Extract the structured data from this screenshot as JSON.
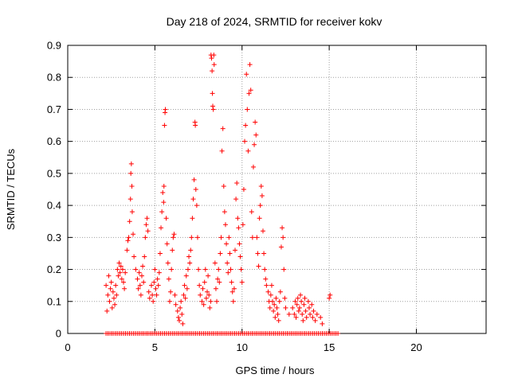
{
  "chart_data": {
    "type": "scatter",
    "title": "Day 218 of 2024, SRMTID for receiver kokv",
    "xlabel": "GPS time / hours",
    "ylabel": "SRMTID / TECUs",
    "xlim": [
      0,
      24
    ],
    "ylim": [
      0,
      0.9
    ],
    "x_ticks": [
      0,
      5,
      10,
      15,
      20
    ],
    "y_ticks": [
      0,
      0.1,
      0.2,
      0.3,
      0.4,
      0.5,
      0.6,
      0.7,
      0.8,
      0.9
    ],
    "x_tick_labels": [
      "0",
      "5",
      "10",
      "15",
      "20"
    ],
    "y_tick_labels": [
      "0",
      "0.1",
      "0.2",
      "0.3",
      "0.4",
      "0.5",
      "0.6",
      "0.7",
      "0.8",
      "0.9"
    ],
    "grid": true,
    "marker": "+",
    "series": [
      {
        "name": "SRMTID",
        "color": "#ff0000",
        "points": [
          [
            2.2,
            0.15
          ],
          [
            2.25,
            0.07
          ],
          [
            2.3,
            0.12
          ],
          [
            2.35,
            0.18
          ],
          [
            2.4,
            0.1
          ],
          [
            2.45,
            0.14
          ],
          [
            2.5,
            0.16
          ],
          [
            2.55,
            0.08
          ],
          [
            2.6,
            0.13
          ],
          [
            2.65,
            0.11
          ],
          [
            2.7,
            0.09
          ],
          [
            2.75,
            0.15
          ],
          [
            2.8,
            0.12
          ],
          [
            2.85,
            0.2
          ],
          [
            2.9,
            0.18
          ],
          [
            2.95,
            0.22
          ],
          [
            3.0,
            0.19
          ],
          [
            3.05,
            0.21
          ],
          [
            3.1,
            0.17
          ],
          [
            3.15,
            0.2
          ],
          [
            3.2,
            0.16
          ],
          [
            3.25,
            0.14
          ],
          [
            3.3,
            0.19
          ],
          [
            3.4,
            0.26
          ],
          [
            3.45,
            0.29
          ],
          [
            3.5,
            0.3
          ],
          [
            3.55,
            0.35
          ],
          [
            3.6,
            0.42
          ],
          [
            3.62,
            0.5
          ],
          [
            3.65,
            0.53
          ],
          [
            3.68,
            0.46
          ],
          [
            3.7,
            0.38
          ],
          [
            3.75,
            0.31
          ],
          [
            3.8,
            0.24
          ],
          [
            3.9,
            0.2
          ],
          [
            4.0,
            0.17
          ],
          [
            4.05,
            0.14
          ],
          [
            4.1,
            0.19
          ],
          [
            4.15,
            0.15
          ],
          [
            4.2,
            0.12
          ],
          [
            4.25,
            0.18
          ],
          [
            4.3,
            0.21
          ],
          [
            4.35,
            0.16
          ],
          [
            4.4,
            0.24
          ],
          [
            4.45,
            0.3
          ],
          [
            4.5,
            0.34
          ],
          [
            4.55,
            0.36
          ],
          [
            4.6,
            0.32
          ],
          [
            4.65,
            0.13
          ],
          [
            4.7,
            0.11
          ],
          [
            4.8,
            0.15
          ],
          [
            4.85,
            0.12
          ],
          [
            4.9,
            0.1
          ],
          [
            4.95,
            0.16
          ],
          [
            5.0,
            0.2
          ],
          [
            5.05,
            0.14
          ],
          [
            5.1,
            0.12
          ],
          [
            5.15,
            0.17
          ],
          [
            5.2,
            0.15
          ],
          [
            5.25,
            0.19
          ],
          [
            5.3,
            0.25
          ],
          [
            5.35,
            0.33
          ],
          [
            5.4,
            0.38
          ],
          [
            5.45,
            0.44
          ],
          [
            5.5,
            0.41
          ],
          [
            5.52,
            0.46
          ],
          [
            5.55,
            0.65
          ],
          [
            5.58,
            0.69
          ],
          [
            5.6,
            0.7
          ],
          [
            5.65,
            0.36
          ],
          [
            5.7,
            0.28
          ],
          [
            5.75,
            0.22
          ],
          [
            5.8,
            0.17
          ],
          [
            5.85,
            0.1
          ],
          [
            5.9,
            0.13
          ],
          [
            5.95,
            0.2
          ],
          [
            6.0,
            0.26
          ],
          [
            6.05,
            0.3
          ],
          [
            6.1,
            0.31
          ],
          [
            6.15,
            0.12
          ],
          [
            6.2,
            0.09
          ],
          [
            6.3,
            0.07
          ],
          [
            6.35,
            0.05
          ],
          [
            6.4,
            0.04
          ],
          [
            6.45,
            0.08
          ],
          [
            6.5,
            0.1
          ],
          [
            6.55,
            0.06
          ],
          [
            6.6,
            0.03
          ],
          [
            6.65,
            0.12
          ],
          [
            6.7,
            0.15
          ],
          [
            6.75,
            0.11
          ],
          [
            6.8,
            0.18
          ],
          [
            6.85,
            0.14
          ],
          [
            6.9,
            0.2
          ],
          [
            6.95,
            0.24
          ],
          [
            7.0,
            0.22
          ],
          [
            7.05,
            0.26
          ],
          [
            7.1,
            0.3
          ],
          [
            7.15,
            0.36
          ],
          [
            7.2,
            0.42
          ],
          [
            7.25,
            0.48
          ],
          [
            7.3,
            0.66
          ],
          [
            7.32,
            0.65
          ],
          [
            7.35,
            0.45
          ],
          [
            7.4,
            0.4
          ],
          [
            7.45,
            0.3
          ],
          [
            7.5,
            0.2
          ],
          [
            7.55,
            0.15
          ],
          [
            7.6,
            0.12
          ],
          [
            7.7,
            0.1
          ],
          [
            7.75,
            0.14
          ],
          [
            7.8,
            0.09
          ],
          [
            7.85,
            0.16
          ],
          [
            7.9,
            0.2
          ],
          [
            7.95,
            0.11
          ],
          [
            8.0,
            0.13
          ],
          [
            8.05,
            0.18
          ],
          [
            8.1,
            0.12
          ],
          [
            8.15,
            0.08
          ],
          [
            8.2,
            0.1
          ],
          [
            8.22,
            0.87
          ],
          [
            8.25,
            0.86
          ],
          [
            8.28,
            0.82
          ],
          [
            8.3,
            0.75
          ],
          [
            8.32,
            0.71
          ],
          [
            8.35,
            0.7
          ],
          [
            8.38,
            0.87
          ],
          [
            8.4,
            0.84
          ],
          [
            8.45,
            0.22
          ],
          [
            8.5,
            0.14
          ],
          [
            8.55,
            0.1
          ],
          [
            8.6,
            0.17
          ],
          [
            8.65,
            0.2
          ],
          [
            8.7,
            0.16
          ],
          [
            8.75,
            0.25
          ],
          [
            8.8,
            0.3
          ],
          [
            8.85,
            0.57
          ],
          [
            8.9,
            0.64
          ],
          [
            8.95,
            0.46
          ],
          [
            9.0,
            0.38
          ],
          [
            9.05,
            0.34
          ],
          [
            9.1,
            0.28
          ],
          [
            9.15,
            0.22
          ],
          [
            9.2,
            0.19
          ],
          [
            9.25,
            0.3
          ],
          [
            9.3,
            0.25
          ],
          [
            9.35,
            0.2
          ],
          [
            9.4,
            0.16
          ],
          [
            9.45,
            0.13
          ],
          [
            9.5,
            0.1
          ],
          [
            9.55,
            0.14
          ],
          [
            9.6,
            0.26
          ],
          [
            9.65,
            0.42
          ],
          [
            9.7,
            0.47
          ],
          [
            9.75,
            0.36
          ],
          [
            9.8,
            0.33
          ],
          [
            9.85,
            0.28
          ],
          [
            9.9,
            0.24
          ],
          [
            9.95,
            0.2
          ],
          [
            10.0,
            0.16
          ],
          [
            10.05,
            0.34
          ],
          [
            10.1,
            0.45
          ],
          [
            10.15,
            0.6
          ],
          [
            10.2,
            0.65
          ],
          [
            10.25,
            0.81
          ],
          [
            10.3,
            0.7
          ],
          [
            10.35,
            0.57
          ],
          [
            10.4,
            0.75
          ],
          [
            10.45,
            0.84
          ],
          [
            10.5,
            0.76
          ],
          [
            10.55,
            0.38
          ],
          [
            10.6,
            0.3
          ],
          [
            10.65,
            0.52
          ],
          [
            10.7,
            0.59
          ],
          [
            10.75,
            0.66
          ],
          [
            10.8,
            0.62
          ],
          [
            10.85,
            0.3
          ],
          [
            10.9,
            0.25
          ],
          [
            10.95,
            0.21
          ],
          [
            11.0,
            0.36
          ],
          [
            11.05,
            0.4
          ],
          [
            11.1,
            0.46
          ],
          [
            11.15,
            0.43
          ],
          [
            11.2,
            0.32
          ],
          [
            11.25,
            0.25
          ],
          [
            11.3,
            0.2
          ],
          [
            11.35,
            0.17
          ],
          [
            11.4,
            0.15
          ],
          [
            11.5,
            0.13
          ],
          [
            11.55,
            0.1
          ],
          [
            11.6,
            0.08
          ],
          [
            11.65,
            0.12
          ],
          [
            11.7,
            0.15
          ],
          [
            11.75,
            0.1
          ],
          [
            11.8,
            0.07
          ],
          [
            11.85,
            0.09
          ],
          [
            11.9,
            0.05
          ],
          [
            11.95,
            0.11
          ],
          [
            12.0,
            0.08
          ],
          [
            12.05,
            0.06
          ],
          [
            12.1,
            0.04
          ],
          [
            12.15,
            0.1
          ],
          [
            12.2,
            0.13
          ],
          [
            12.25,
            0.27
          ],
          [
            12.3,
            0.33
          ],
          [
            12.35,
            0.3
          ],
          [
            12.4,
            0.2
          ],
          [
            12.45,
            0.11
          ],
          [
            12.5,
            0.08
          ],
          [
            12.7,
            0.06
          ],
          [
            12.9,
            0.08
          ],
          [
            13.0,
            0.06
          ],
          [
            13.05,
            0.1
          ],
          [
            13.1,
            0.05
          ],
          [
            13.15,
            0.09
          ],
          [
            13.2,
            0.11
          ],
          [
            13.25,
            0.07
          ],
          [
            13.3,
            0.08
          ],
          [
            13.35,
            0.12
          ],
          [
            13.4,
            0.1
          ],
          [
            13.45,
            0.06
          ],
          [
            13.5,
            0.04
          ],
          [
            13.55,
            0.09
          ],
          [
            13.6,
            0.11
          ],
          [
            13.65,
            0.07
          ],
          [
            13.7,
            0.05
          ],
          [
            13.8,
            0.1
          ],
          [
            13.85,
            0.08
          ],
          [
            13.9,
            0.06
          ],
          [
            14.0,
            0.09
          ],
          [
            14.05,
            0.05
          ],
          [
            14.1,
            0.07
          ],
          [
            14.2,
            0.04
          ],
          [
            14.3,
            0.06
          ],
          [
            14.5,
            0.05
          ],
          [
            14.6,
            0.03
          ],
          [
            15.0,
            0.11
          ],
          [
            15.05,
            0.12
          ]
        ],
        "zero_range": [
          2.2,
          15.5
        ],
        "zero_count": 120
      }
    ]
  }
}
